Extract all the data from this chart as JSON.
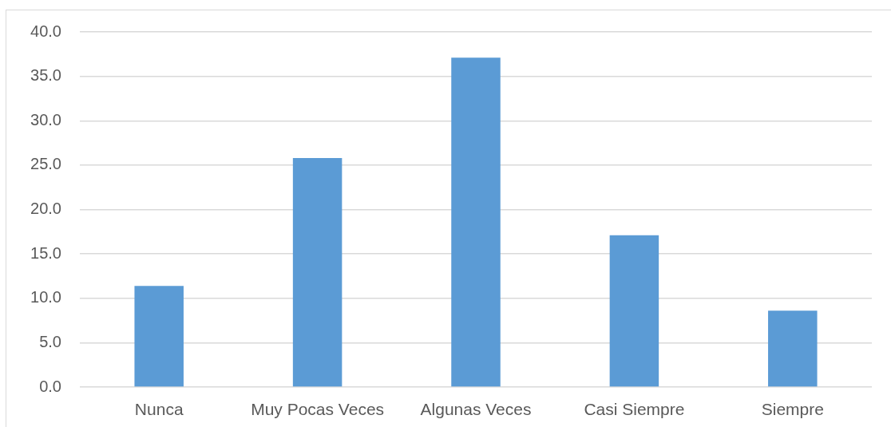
{
  "chart_data": {
    "type": "bar",
    "categories": [
      "Nunca",
      "Muy Pocas Veces",
      "Algunas Veces",
      "Casi Siempre",
      "Siempre"
    ],
    "values": [
      11.4,
      25.8,
      37.1,
      17.1,
      8.6
    ],
    "color": "#5b9bd5",
    "ylim": [
      0,
      40
    ],
    "yticks": [
      {
        "value": 0,
        "label": "0.0"
      },
      {
        "value": 5,
        "label": "5.0"
      },
      {
        "value": 10,
        "label": "10.0"
      },
      {
        "value": 15,
        "label": "15.0"
      },
      {
        "value": 20,
        "label": "20.0"
      },
      {
        "value": 25,
        "label": "25.0"
      },
      {
        "value": 30,
        "label": "30.0"
      },
      {
        "value": 35,
        "label": "35.0"
      },
      {
        "value": 40,
        "label": "40.0"
      }
    ],
    "grid": "y"
  }
}
